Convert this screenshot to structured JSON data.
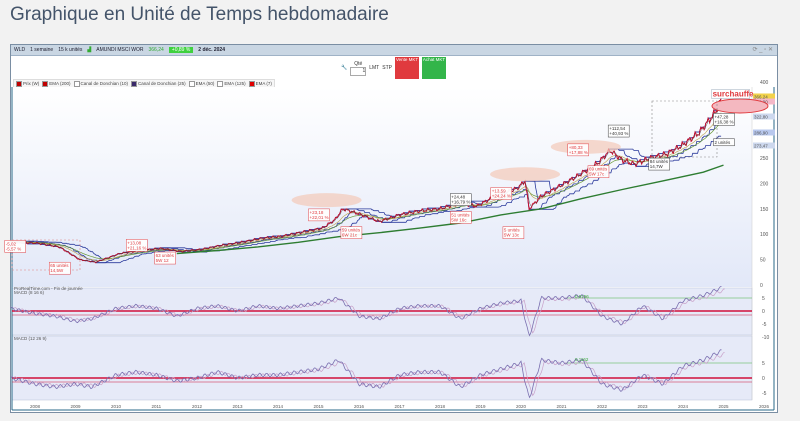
{
  "title": "Graphique en Unité de Temps hebdomadaire",
  "toolbar": {
    "instrument": "WLD",
    "period": "1 semaine",
    "units": "15 k unités",
    "name": "AMUNDI MSCI WOR",
    "price": "366,24",
    "change": "+0,89 %",
    "date": "2 déc. 2024"
  },
  "controls": {
    "qty_label": "Qté",
    "qty_value": "1",
    "lmt": "LMT",
    "stp": "STP",
    "sell": "Vente MKT",
    "buy": "Achat MKT"
  },
  "legend": [
    {
      "label": "Prix (W)",
      "color": "#c00000"
    },
    {
      "label": "EMA (200)",
      "color": "#c00000"
    },
    {
      "label": "Canal de Donchian (10)",
      "color": "#ffffff"
    },
    {
      "label": "Canal de Donchian (25)",
      "color": "#3a2a6a"
    },
    {
      "label": "EMA (50)",
      "color": "#ffffff"
    },
    {
      "label": "EMA (125)",
      "color": "#ffffff"
    },
    {
      "label": "EMA (7)",
      "color": "#e00000"
    }
  ],
  "panels": {
    "source": "ProRealTime.com - Fin de journée",
    "macd1": "MACD (8 16 6)",
    "macd2": "MACD (12 26 9)"
  },
  "colors": {
    "price": "#c8102e",
    "ema200": "#2e7d32",
    "ema50": "#6a9a3a",
    "donchian": "#2b3a9c",
    "annotation": "#e03a3e",
    "macd": "#7a6fb0",
    "signal": "#c8a0c8",
    "zero": "#d0103a"
  },
  "annotations": [
    {
      "text": "surchauffe",
      "year": 2025.2,
      "price": 375
    },
    {
      "text": "+112,54\n+40,93 %",
      "year": 2022.4,
      "price": 305
    },
    {
      "text": "+47,28\n+16,38 %",
      "year": 2025.0,
      "price": 328
    },
    {
      "text": "84 unités\n14,7W",
      "year": 2023.4,
      "price": 240
    },
    {
      "text": "2 unités",
      "year": 2025.0,
      "price": 278
    },
    {
      "text": "+80,33\n+17,88 %",
      "year": 2021.4,
      "price": 268
    },
    {
      "text": "69 unités\n5W 17c",
      "year": 2021.9,
      "price": 225
    },
    {
      "text": "+24,48\n+16,79 %",
      "year": 2018.5,
      "price": 170
    },
    {
      "text": "+13,59\n+24,24 %",
      "year": 2019.5,
      "price": 182
    },
    {
      "text": "51 unités\n5W 16c",
      "year": 2018.5,
      "price": 135
    },
    {
      "text": "5 unités\n5W 13c",
      "year": 2019.8,
      "price": 105
    },
    {
      "text": "+23,18\n+22,01 %",
      "year": 2015.0,
      "price": 140
    },
    {
      "text": "59 unités\n6W 21c",
      "year": 2015.8,
      "price": 105
    },
    {
      "text": "+13,08\n+21,16 %",
      "year": 2010.5,
      "price": 80
    },
    {
      "text": "63 unités\n5W 12",
      "year": 2011.2,
      "price": 55
    },
    {
      "text": "-5,02\n-5,57 %",
      "year": 2007.5,
      "price": 78
    },
    {
      "text": "65 unités\n14,5W",
      "year": 2008.6,
      "price": 35
    }
  ],
  "chart_data": {
    "type": "line",
    "ylim": [
      0,
      400
    ],
    "yticks": [
      400,
      250,
      200,
      150,
      100,
      50,
      0
    ],
    "price_tags": [
      "366,24",
      "353,90",
      "322,80",
      "286,90",
      "273,47"
    ],
    "xticks": [
      "2008",
      "2009",
      "2010",
      "2011",
      "2012",
      "2013",
      "2014",
      "2015",
      "2016",
      "2017",
      "2018",
      "2019",
      "2020",
      "2021",
      "2022",
      "2023",
      "2024",
      "2025",
      "2026"
    ],
    "price": {
      "x": [
        2007.4,
        2008.1,
        2008.6,
        2009.1,
        2009.5,
        2010.1,
        2010.6,
        2011.1,
        2011.6,
        2012.1,
        2012.6,
        2013.1,
        2013.6,
        2014.1,
        2014.6,
        2015.1,
        2015.4,
        2015.6,
        2016.0,
        2016.5,
        2017.0,
        2017.5,
        2018.0,
        2018.5,
        2018.9,
        2019.3,
        2019.9,
        2020.1,
        2020.2,
        2020.5,
        2020.9,
        2021.4,
        2021.9,
        2022.2,
        2022.5,
        2022.8,
        2023.2,
        2023.6,
        2024.0,
        2024.4,
        2024.8,
        2024.95
      ],
      "y": [
        85,
        82,
        75,
        50,
        45,
        62,
        68,
        72,
        66,
        70,
        78,
        84,
        92,
        96,
        104,
        112,
        128,
        150,
        140,
        125,
        138,
        146,
        150,
        162,
        155,
        172,
        190,
        205,
        150,
        175,
        192,
        215,
        240,
        265,
        246,
        238,
        250,
        258,
        276,
        300,
        340,
        366
      ]
    },
    "ema200": {
      "x": [
        2011.5,
        2012.5,
        2013.5,
        2014.5,
        2015.5,
        2016.5,
        2017.5,
        2018.5,
        2019.5,
        2020.5,
        2021.5,
        2022.5,
        2023.5,
        2024.5,
        2025.0
      ],
      "y": [
        62,
        68,
        75,
        84,
        95,
        103,
        112,
        122,
        138,
        150,
        170,
        188,
        205,
        222,
        236
      ]
    },
    "macd1": {
      "name": "MACD (8 16 6)",
      "ylim": [
        -10,
        8
      ],
      "yticks": [
        5,
        0,
        -5,
        -10
      ],
      "x": [
        2007.4,
        2008.0,
        2008.5,
        2009.0,
        2009.4,
        2010.0,
        2010.5,
        2011.0,
        2011.5,
        2012.0,
        2012.5,
        2013.0,
        2013.5,
        2014.0,
        2014.5,
        2015.0,
        2015.5,
        2016.0,
        2016.5,
        2017.0,
        2017.5,
        2018.0,
        2018.5,
        2019.0,
        2019.5,
        2020.0,
        2020.2,
        2020.5,
        2021.0,
        2021.5,
        2022.0,
        2022.5,
        2023.0,
        2023.5,
        2024.0,
        2024.5,
        2024.95
      ],
      "y": [
        1,
        -1,
        -2,
        -4,
        -3,
        1,
        2,
        1,
        -2,
        1,
        2,
        0,
        2,
        1,
        2,
        3,
        5,
        -2,
        -3,
        1,
        2,
        2,
        -3,
        1,
        3,
        4,
        -10,
        5,
        5,
        6,
        -2,
        -5,
        2,
        -3,
        4,
        6,
        9
      ]
    },
    "macd2": {
      "name": "MACD (12 26 9)",
      "ylim": [
        -7,
        8
      ],
      "yticks": [
        5,
        0,
        -5
      ],
      "x": [
        2007.4,
        2008.0,
        2008.5,
        2009.0,
        2009.4,
        2010.0,
        2010.5,
        2011.0,
        2011.5,
        2012.0,
        2012.5,
        2013.0,
        2013.5,
        2014.0,
        2014.5,
        2015.0,
        2015.5,
        2016.0,
        2016.5,
        2017.0,
        2017.5,
        2018.0,
        2018.5,
        2019.0,
        2019.5,
        2020.0,
        2020.2,
        2020.5,
        2021.0,
        2021.5,
        2022.0,
        2022.5,
        2023.0,
        2023.5,
        2024.0,
        2024.5,
        2024.95
      ],
      "y": [
        0,
        -2,
        -3,
        -2,
        -3,
        1,
        2,
        1,
        -1,
        0,
        2,
        0,
        1,
        1,
        2,
        3,
        6,
        -2,
        -3,
        1,
        2,
        2,
        -3,
        1,
        3,
        5,
        -7,
        6,
        5,
        6,
        -2,
        -4,
        1,
        -2,
        4,
        6,
        9
      ]
    },
    "macd1_level": "0,0156",
    "macd2_level": "0,1162"
  }
}
